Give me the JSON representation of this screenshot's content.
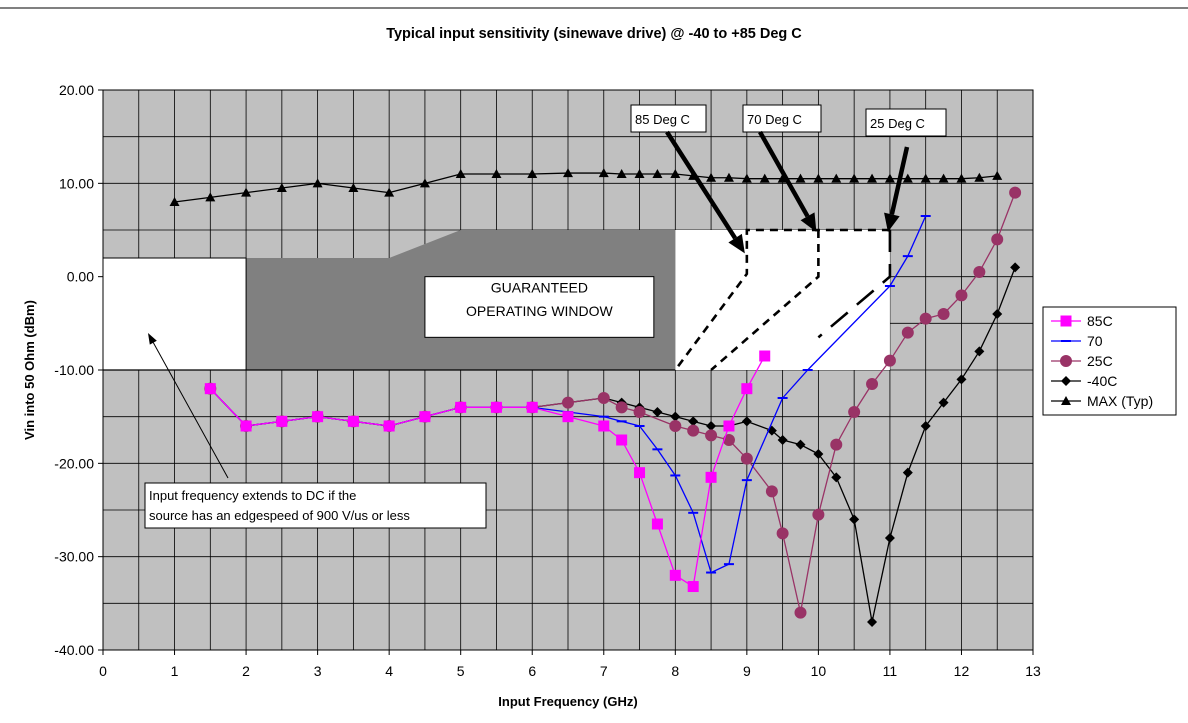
{
  "chart_data": {
    "type": "line",
    "title": "Typical input sensitivity (sinewave drive) @ -40 to +85 Deg C",
    "xlabel": "Input Frequency (GHz)",
    "ylabel": "Vin into 50 Ohm (dBm)",
    "xlim": [
      0,
      13
    ],
    "ylim": [
      -40,
      20
    ],
    "x_ticks": [
      0,
      1,
      2,
      3,
      4,
      5,
      6,
      7,
      8,
      9,
      10,
      11,
      12,
      13
    ],
    "x_tick_labels": [
      "0",
      "1",
      "2",
      "3",
      "4",
      "5",
      "6",
      "7",
      "8",
      "9",
      "10",
      "11",
      "12",
      "13"
    ],
    "y_ticks": [
      -40,
      -30,
      -20,
      -10,
      0,
      10,
      20
    ],
    "y_tick_labels": [
      "-40.00",
      "-30.00",
      "-20.00",
      "-10.00",
      "0.00",
      "10.00",
      "20.00"
    ],
    "grid": true,
    "plot_background": "#c0c0c0",
    "legend_position": "right",
    "series": [
      {
        "name": "85C",
        "color": "#ff00ff",
        "marker": "square",
        "points": [
          [
            1.5,
            -12
          ],
          [
            2,
            -16
          ],
          [
            2.5,
            -15.5
          ],
          [
            3,
            -15
          ],
          [
            3.5,
            -15.5
          ],
          [
            4,
            -16
          ],
          [
            4.5,
            -15
          ],
          [
            5,
            -14
          ],
          [
            5.5,
            -14
          ],
          [
            6,
            -14
          ],
          [
            6.5,
            -15
          ],
          [
            7,
            -16
          ],
          [
            7.25,
            -17.5
          ],
          [
            7.5,
            -21
          ],
          [
            7.75,
            -26.5
          ],
          [
            8,
            -32
          ],
          [
            8.25,
            -33.2
          ],
          [
            8.5,
            -21.5
          ],
          [
            8.75,
            -16
          ],
          [
            9,
            -12
          ],
          [
            9.25,
            -8.5
          ]
        ]
      },
      {
        "name": "70",
        "color": "#0000ff",
        "marker": "dash",
        "points": [
          [
            1.5,
            -12
          ],
          [
            2,
            -16
          ],
          [
            2.5,
            -15.5
          ],
          [
            3,
            -15
          ],
          [
            3.5,
            -15.5
          ],
          [
            4,
            -16
          ],
          [
            4.5,
            -15
          ],
          [
            5,
            -14
          ],
          [
            5.5,
            -14
          ],
          [
            6,
            -14
          ],
          [
            6.5,
            -14.5
          ],
          [
            7,
            -15
          ],
          [
            7.25,
            -15.5
          ],
          [
            7.5,
            -16
          ],
          [
            7.75,
            -18.5
          ],
          [
            8,
            -21.3
          ],
          [
            8.25,
            -25.3
          ],
          [
            8.5,
            -31.7
          ],
          [
            8.75,
            -30.8
          ],
          [
            9,
            -21.8
          ],
          [
            9.5,
            -13
          ],
          [
            9.85,
            -10
          ],
          [
            11,
            -1
          ],
          [
            11.25,
            2.2
          ],
          [
            11.5,
            6.5
          ]
        ]
      },
      {
        "name": "25C",
        "color": "#993366",
        "marker": "circle",
        "points": [
          [
            1.5,
            -12
          ],
          [
            2,
            -16
          ],
          [
            2.5,
            -15.5
          ],
          [
            3,
            -15
          ],
          [
            3.5,
            -15.5
          ],
          [
            4,
            -16
          ],
          [
            4.5,
            -15
          ],
          [
            5,
            -14
          ],
          [
            5.5,
            -14
          ],
          [
            6,
            -14
          ],
          [
            6.5,
            -13.5
          ],
          [
            7,
            -13
          ],
          [
            7.25,
            -14
          ],
          [
            7.5,
            -14.5
          ],
          [
            8,
            -16
          ],
          [
            8.25,
            -16.5
          ],
          [
            8.5,
            -17
          ],
          [
            8.75,
            -17.5
          ],
          [
            9,
            -19.5
          ],
          [
            9.35,
            -23
          ],
          [
            9.5,
            -27.5
          ],
          [
            9.75,
            -36
          ],
          [
            10,
            -25.5
          ],
          [
            10.25,
            -18
          ],
          [
            10.5,
            -14.5
          ],
          [
            10.75,
            -11.5
          ],
          [
            11,
            -9
          ],
          [
            11.25,
            -6
          ],
          [
            11.5,
            -4.5
          ],
          [
            11.75,
            -4
          ],
          [
            12,
            -2
          ],
          [
            12.25,
            0.5
          ],
          [
            12.5,
            4
          ],
          [
            12.75,
            9
          ]
        ]
      },
      {
        "name": "-40C",
        "color": "#000000",
        "marker": "diamond",
        "points": [
          [
            1.5,
            -12
          ],
          [
            2,
            -16
          ],
          [
            2.5,
            -15.5
          ],
          [
            3,
            -15
          ],
          [
            3.5,
            -15.5
          ],
          [
            4,
            -16
          ],
          [
            4.5,
            -15
          ],
          [
            5,
            -14
          ],
          [
            5.5,
            -14
          ],
          [
            6,
            -14
          ],
          [
            6.5,
            -13.5
          ],
          [
            7,
            -13
          ],
          [
            7.25,
            -13.5
          ],
          [
            7.5,
            -14
          ],
          [
            7.75,
            -14.5
          ],
          [
            8,
            -15
          ],
          [
            8.25,
            -15.5
          ],
          [
            8.5,
            -16
          ],
          [
            8.75,
            -16
          ],
          [
            9,
            -15.5
          ],
          [
            9.35,
            -16.5
          ],
          [
            9.5,
            -17.5
          ],
          [
            9.75,
            -18
          ],
          [
            10,
            -19
          ],
          [
            10.25,
            -21.5
          ],
          [
            10.5,
            -26
          ],
          [
            10.75,
            -37
          ],
          [
            11,
            -28
          ],
          [
            11.25,
            -21
          ],
          [
            11.5,
            -16
          ],
          [
            11.75,
            -13.5
          ],
          [
            12,
            -11
          ],
          [
            12.25,
            -8
          ],
          [
            12.5,
            -4
          ],
          [
            12.75,
            1
          ]
        ]
      },
      {
        "name": "MAX (Typ)",
        "color": "#000000",
        "marker": "triangle",
        "points": [
          [
            1,
            8
          ],
          [
            1.5,
            8.5
          ],
          [
            2,
            9
          ],
          [
            2.5,
            9.5
          ],
          [
            3,
            10
          ],
          [
            3.5,
            9.5
          ],
          [
            4,
            9
          ],
          [
            4.5,
            10
          ],
          [
            5,
            11
          ],
          [
            5.5,
            11
          ],
          [
            6,
            11
          ],
          [
            6.5,
            11.1
          ],
          [
            7,
            11.1
          ],
          [
            7.25,
            11
          ],
          [
            7.5,
            11
          ],
          [
            7.75,
            11
          ],
          [
            8,
            11
          ],
          [
            8.25,
            10.8
          ],
          [
            8.5,
            10.6
          ],
          [
            8.75,
            10.6
          ],
          [
            9,
            10.5
          ],
          [
            9.25,
            10.5
          ],
          [
            9.5,
            10.5
          ],
          [
            9.75,
            10.5
          ],
          [
            10,
            10.5
          ],
          [
            10.25,
            10.5
          ],
          [
            10.5,
            10.5
          ],
          [
            10.75,
            10.5
          ],
          [
            11,
            10.5
          ],
          [
            11.25,
            10.5
          ],
          [
            11.5,
            10.5
          ],
          [
            11.75,
            10.5
          ],
          [
            12,
            10.5
          ],
          [
            12.25,
            10.6
          ],
          [
            12.5,
            10.8
          ]
        ]
      }
    ],
    "annotations": {
      "window_label": "GUARANTEED OPERATING WINDOW",
      "window_label_lines": [
        "GUARANTEED",
        "OPERATING WINDOW"
      ],
      "callout_85": "85 Deg C",
      "callout_70": "70 Deg C",
      "callout_25": "25 Deg C",
      "dc_note_lines": [
        "Input frequency extends to DC if the",
        "source has an edgespeed of 900 V/us or less"
      ]
    }
  }
}
